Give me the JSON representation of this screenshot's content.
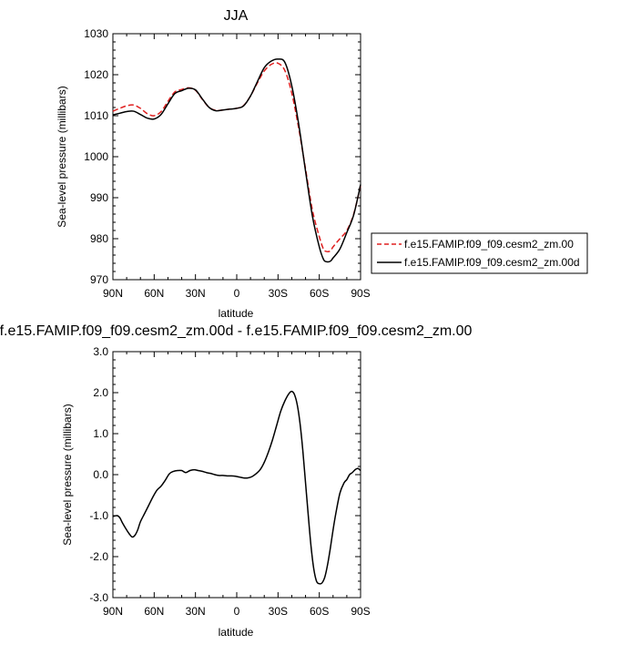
{
  "chart_data": [
    {
      "type": "line",
      "title": "JJA",
      "xlabel": "latitude",
      "ylabel": "Sea-level pressure (millibars)",
      "xlim": [
        -90,
        90
      ],
      "ylim": [
        970,
        1030
      ],
      "x_ticks": [
        -90,
        -60,
        -30,
        0,
        30,
        60,
        90
      ],
      "x_tick_labels": [
        "90N",
        "60N",
        "30N",
        "0",
        "30S",
        "60S",
        "90S"
      ],
      "y_ticks": [
        970,
        980,
        990,
        1000,
        1010,
        1020,
        1030
      ],
      "y_tick_labels": [
        "970",
        "980",
        "990",
        "1000",
        "1010",
        "1020",
        "1030"
      ],
      "grid": false,
      "legend_position": "right",
      "series": [
        {
          "name": "f.e15.FAMIP.f09_f09.cesm2_zm.00",
          "color": "#e02020",
          "dash": "dashed",
          "x": [
            -90,
            -85,
            -80,
            -75,
            -70,
            -65,
            -60,
            -55,
            -50,
            -45,
            -40,
            -35,
            -30,
            -25,
            -20,
            -15,
            -10,
            -5,
            0,
            5,
            10,
            15,
            20,
            25,
            30,
            35,
            40,
            45,
            50,
            55,
            60,
            63,
            65,
            68,
            70,
            75,
            80,
            85,
            90
          ],
          "y": [
            1011.1,
            1011.8,
            1012.4,
            1012.6,
            1011.8,
            1010.5,
            1010.0,
            1011.0,
            1013.5,
            1015.8,
            1016.4,
            1016.8,
            1016.2,
            1014.0,
            1012.0,
            1011.3,
            1011.4,
            1011.6,
            1011.8,
            1012.5,
            1014.8,
            1018.0,
            1020.9,
            1022.5,
            1022.8,
            1021.0,
            1015.5,
            1007.0,
            997.0,
            987.0,
            980.5,
            977.5,
            976.9,
            977.0,
            978.0,
            980.0,
            982.0,
            986.0,
            993.0
          ]
        },
        {
          "name": "f.e15.FAMIP.f09_f09.cesm2_zm.00d",
          "color": "#000000",
          "dash": "solid",
          "x": [
            -90,
            -85,
            -80,
            -75,
            -70,
            -65,
            -60,
            -55,
            -50,
            -45,
            -40,
            -35,
            -30,
            -25,
            -20,
            -15,
            -10,
            -5,
            0,
            5,
            10,
            15,
            20,
            25,
            30,
            35,
            40,
            45,
            50,
            55,
            60,
            63,
            65,
            68,
            70,
            75,
            80,
            85,
            90
          ],
          "y": [
            1010.2,
            1010.6,
            1011.0,
            1011.1,
            1010.3,
            1009.4,
            1009.2,
            1010.3,
            1012.9,
            1015.4,
            1016.1,
            1016.7,
            1016.3,
            1014.1,
            1012.0,
            1011.2,
            1011.4,
            1011.6,
            1011.8,
            1012.4,
            1014.8,
            1018.3,
            1021.7,
            1023.3,
            1023.8,
            1023.0,
            1017.3,
            1008.0,
            996.5,
            985.5,
            978.0,
            975.0,
            974.4,
            974.5,
            975.3,
            977.5,
            981.5,
            985.8,
            993.2
          ]
        }
      ]
    },
    {
      "type": "line",
      "title": "f.e15.FAMIP.f09_f09.cesm2_zm.00d - f.e15.FAMIP.f09_f09.cesm2_zm.00",
      "xlabel": "latitude",
      "ylabel": "Sea-level pressure (millibars)",
      "xlim": [
        -90,
        90
      ],
      "ylim": [
        -3.0,
        3.0
      ],
      "x_ticks": [
        -90,
        -60,
        -30,
        0,
        30,
        60,
        90
      ],
      "x_tick_labels": [
        "90N",
        "60N",
        "30N",
        "0",
        "30S",
        "60S",
        "90S"
      ],
      "y_ticks": [
        -3.0,
        -2.0,
        -1.0,
        0.0,
        1.0,
        2.0,
        3.0
      ],
      "y_tick_labels": [
        "-3.0",
        "-2.0",
        "-1.0",
        "0.0",
        "1.0",
        "2.0",
        "3.0"
      ],
      "grid": false,
      "series": [
        {
          "color": "#000000",
          "dash": "solid",
          "x": [
            -90,
            -87,
            -85,
            -83,
            -80,
            -78,
            -76,
            -74,
            -72,
            -70,
            -67,
            -64,
            -61,
            -58,
            -55,
            -52,
            -49,
            -46,
            -43,
            -40,
            -37,
            -34,
            -31,
            -28,
            -25,
            -22,
            -19,
            -16,
            -13,
            -10,
            -7,
            -4,
            -1,
            2,
            5,
            8,
            11,
            14,
            17,
            20,
            23,
            26,
            29,
            32,
            35,
            38,
            40,
            42,
            44,
            46,
            48,
            50,
            52,
            54,
            56,
            58,
            60,
            62,
            64,
            66,
            68,
            70,
            72,
            75,
            78,
            80,
            82,
            84,
            86,
            88,
            90
          ],
          "y": [
            -1.02,
            -1.0,
            -1.05,
            -1.18,
            -1.35,
            -1.45,
            -1.52,
            -1.48,
            -1.35,
            -1.15,
            -0.95,
            -0.75,
            -0.55,
            -0.38,
            -0.28,
            -0.14,
            0.02,
            0.08,
            0.1,
            0.1,
            0.05,
            0.1,
            0.12,
            0.1,
            0.08,
            0.05,
            0.03,
            0.0,
            -0.02,
            -0.02,
            -0.03,
            -0.03,
            -0.04,
            -0.06,
            -0.08,
            -0.08,
            -0.05,
            0.02,
            0.12,
            0.3,
            0.55,
            0.85,
            1.2,
            1.55,
            1.8,
            1.98,
            2.03,
            1.95,
            1.7,
            1.25,
            0.6,
            -0.2,
            -1.0,
            -1.75,
            -2.3,
            -2.6,
            -2.66,
            -2.64,
            -2.5,
            -2.2,
            -1.8,
            -1.35,
            -0.95,
            -0.45,
            -0.2,
            -0.12,
            0.0,
            0.05,
            0.12,
            0.15,
            0.1
          ]
        }
      ]
    }
  ]
}
